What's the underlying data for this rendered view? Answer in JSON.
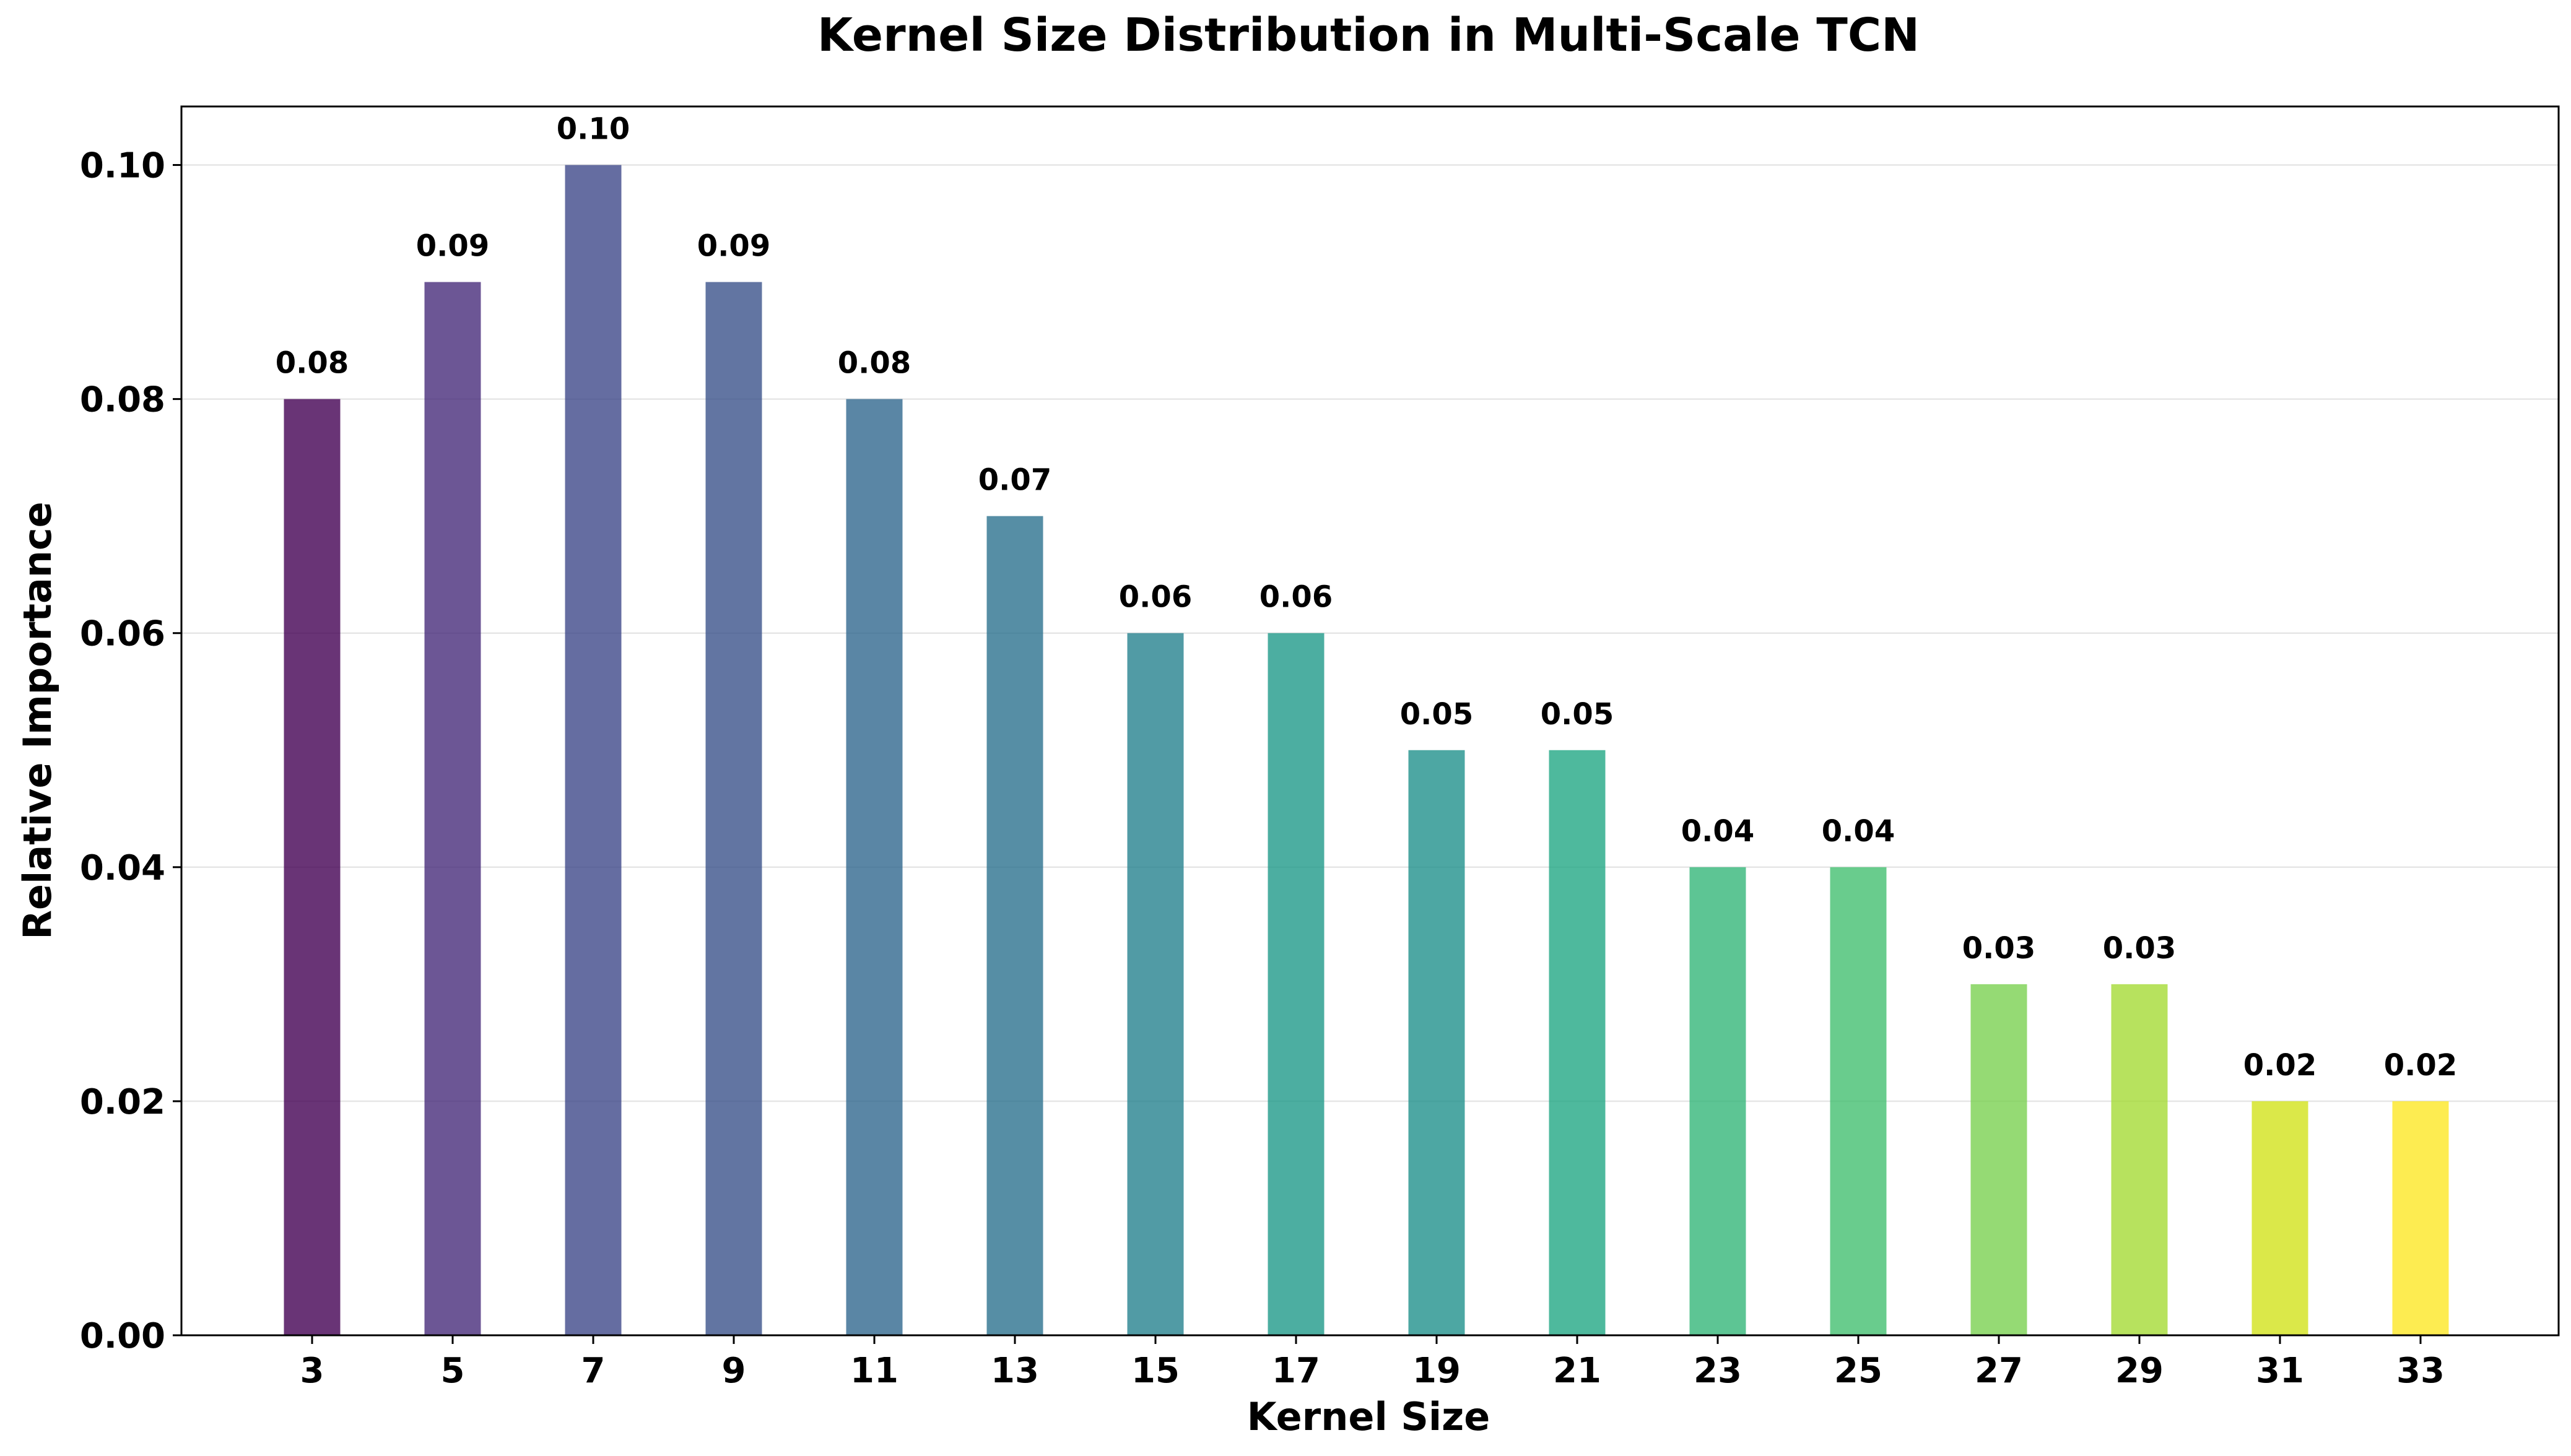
{
  "chart_data": {
    "type": "bar",
    "title": "Kernel Size Distribution in Multi-Scale TCN",
    "xlabel": "Kernel Size",
    "ylabel": "Relative Importance",
    "categories": [
      "3",
      "5",
      "7",
      "9",
      "11",
      "13",
      "15",
      "17",
      "19",
      "21",
      "23",
      "25",
      "27",
      "29",
      "31",
      "33"
    ],
    "values": [
      0.08,
      0.09,
      0.1,
      0.09,
      0.08,
      0.07,
      0.06,
      0.06,
      0.05,
      0.05,
      0.04,
      0.04,
      0.03,
      0.03,
      0.02,
      0.02
    ],
    "data_labels": [
      "0.08",
      "0.09",
      "0.10",
      "0.09",
      "0.08",
      "0.07",
      "0.06",
      "0.06",
      "0.05",
      "0.05",
      "0.04",
      "0.04",
      "0.03",
      "0.03",
      "0.02",
      "0.02"
    ],
    "bar_colors": [
      "#440154",
      "#472c7a",
      "#3f4889",
      "#3b528b",
      "#31688e",
      "#2c728e",
      "#26828e",
      "#1f9a8a",
      "#21918c",
      "#22a884",
      "#35b779",
      "#44bf70",
      "#7ad151",
      "#a5db36",
      "#d2e21b",
      "#fde725"
    ],
    "yticks": [
      "0.00",
      "0.02",
      "0.04",
      "0.06",
      "0.08",
      "0.10"
    ],
    "ylim": [
      0,
      0.105
    ],
    "grid": "y",
    "legend": "none"
  }
}
